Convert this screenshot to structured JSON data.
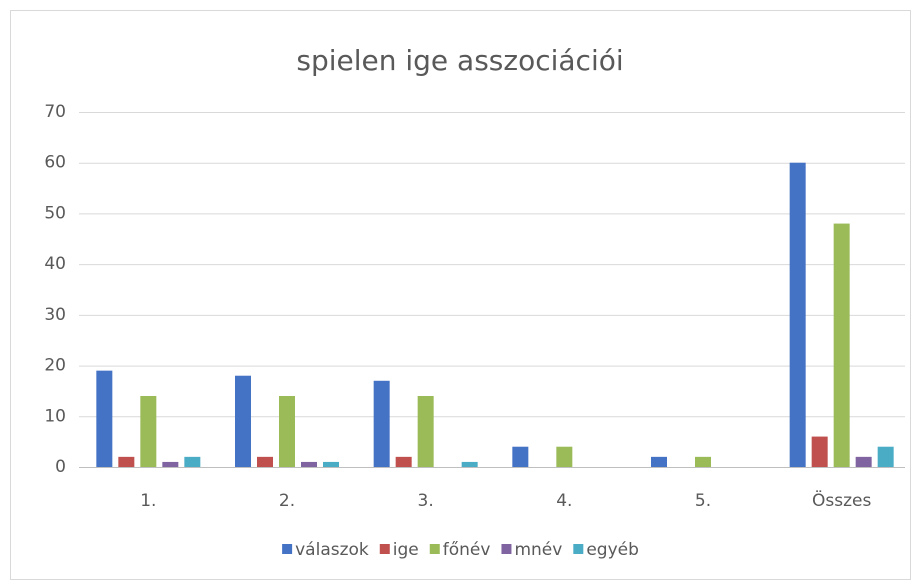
{
  "chart_data": {
    "type": "bar",
    "title": "spielen ige asszociációi",
    "categories": [
      "1.",
      "2.",
      "3.",
      "4.",
      "5.",
      "Összes"
    ],
    "series": [
      {
        "name": "válaszok",
        "color": "#4472c4",
        "values": [
          19,
          18,
          17,
          4,
          2,
          60
        ]
      },
      {
        "name": "ige",
        "color": "#c0504d",
        "values": [
          2,
          2,
          2,
          0,
          0,
          6
        ]
      },
      {
        "name": "főnév",
        "color": "#9bbb59",
        "values": [
          14,
          14,
          14,
          4,
          2,
          48
        ]
      },
      {
        "name": "mnév",
        "color": "#8064a2",
        "values": [
          1,
          1,
          0,
          0,
          0,
          2
        ]
      },
      {
        "name": "egyéb",
        "color": "#4bacc6",
        "values": [
          2,
          1,
          1,
          0,
          0,
          4
        ]
      }
    ],
    "ylim": [
      0,
      70
    ],
    "yticks": [
      0,
      10,
      20,
      30,
      40,
      50,
      60,
      70
    ],
    "grid": true,
    "legend": "bottom"
  }
}
